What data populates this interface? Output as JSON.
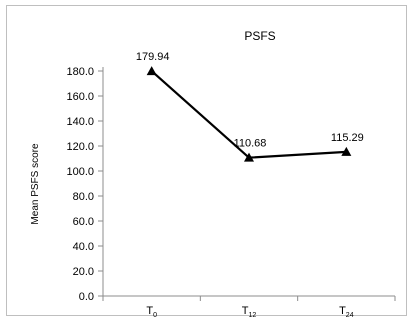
{
  "chart_data": {
    "type": "line",
    "title": "PSFS",
    "ylabel": "Mean PSFS score",
    "xlabel": "",
    "categories": [
      {
        "base": "T",
        "sub": "0"
      },
      {
        "base": "T",
        "sub": "12"
      },
      {
        "base": "T",
        "sub": "24"
      }
    ],
    "series": [
      {
        "values": [
          179.94,
          110.68,
          115.29
        ],
        "labels": [
          "179.94",
          "110.68",
          "115.29"
        ],
        "color": "#000000",
        "marker": "triangle"
      }
    ],
    "ylim": [
      0,
      180
    ],
    "yticks": [
      "0.0",
      "20.0",
      "40.0",
      "60.0",
      "80.0",
      "100.0",
      "120.0",
      "140.0",
      "160.0",
      "180.0"
    ],
    "grid": false,
    "legend": "none"
  }
}
